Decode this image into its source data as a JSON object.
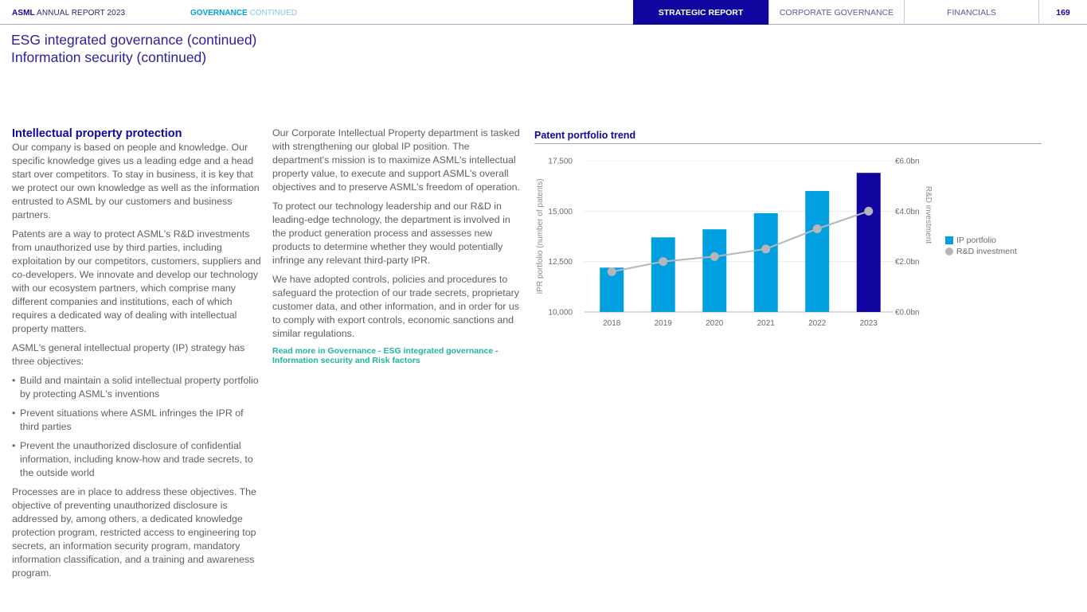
{
  "header": {
    "brand_bold": "ASML",
    "brand_rest": " ANNUAL REPORT 2023",
    "section_bold": "GOVERNANCE",
    "section_rest": " CONTINUED",
    "nav": [
      {
        "label": "STRATEGIC REPORT",
        "active": true
      },
      {
        "label": "CORPORATE GOVERNANCE",
        "active": false
      },
      {
        "label": "FINANCIALS",
        "active": false
      }
    ],
    "page_number": "169"
  },
  "title": {
    "line1": "ESG integrated governance (continued)",
    "line2": "Information security (continued)"
  },
  "column1": {
    "heading": "Intellectual property protection",
    "p1": "Our company is based on people and knowledge. Our specific knowledge gives us a leading edge and a head start over competitors. To stay in business, it is key that we protect our own knowledge as well as the information entrusted to ASML by our customers and business partners.",
    "p2": "Patents are a way to protect ASML's R&D investments from unauthorized use by third parties, including exploitation by our competitors, customers, suppliers and co-developers. We innovate and develop our technology with our ecosystem partners, which comprise many different companies and institutions, each of which requires a dedicated way of dealing with intellectual property matters.",
    "p3": "ASML's general intellectual property (IP) strategy has three objectives:",
    "bullets": [
      "Build and maintain a solid intellectual property portfolio by protecting ASML's inventions",
      "Prevent situations where ASML infringes the IPR of third parties",
      "Prevent the unauthorized disclosure of confidential information, including know-how and trade secrets, to the outside world"
    ],
    "p4": "Processes are in place to address these objectives. The objective of preventing unauthorized disclosure is addressed by, among others, a dedicated knowledge protection program, restricted access to engineering top secrets, an information security program, mandatory information classification, and a training and awareness program."
  },
  "column2": {
    "p1": "Our Corporate Intellectual Property department is tasked with strengthening our global IP position. The department's mission is to maximize ASML's intellectual property value, to execute and support ASML's overall objectives and to preserve ASML's freedom of operation.",
    "p2": "To protect our technology leadership and our R&D in leading-edge technology, the department is involved in the product generation process and assesses new products to determine whether they would potentially infringe any relevant third-party IPR.",
    "p3": "We have adopted controls, policies and procedures to safeguard the protection of our trade secrets, proprietary customer data, and other information, and in order for us to comply with export controls, economic sanctions and similar regulations.",
    "read_more": "Read more in Governance - ESG integrated governance - Information security and Risk factors"
  },
  "colors": {
    "brand": "#10069f",
    "bar": "#009fe0",
    "bar_highlight": "#10069f",
    "line": "#b6b6ba",
    "link": "#1fb5a3"
  },
  "chart_data": {
    "type": "bar",
    "title": "Patent portfolio trend",
    "categories": [
      "2018",
      "2019",
      "2020",
      "2021",
      "2022",
      "2023"
    ],
    "series": [
      {
        "name": "IP portfolio",
        "type": "bar",
        "axis": "left",
        "values": [
          12200,
          13700,
          14100,
          14900,
          16000,
          16900
        ]
      },
      {
        "name": "R&D investment",
        "type": "line",
        "axis": "right",
        "values": [
          1.6,
          2.0,
          2.2,
          2.5,
          3.3,
          4.0
        ]
      }
    ],
    "highlight_category": "2023",
    "ylabel": "IPR portfolio (number of patents)",
    "y2label": "R&D investment",
    "ylim": [
      10000,
      17500
    ],
    "yticks": [
      10000,
      12500,
      15000,
      17500
    ],
    "ytick_labels": [
      "10,000",
      "12,500",
      "15,000",
      "17,500"
    ],
    "y2lim": [
      0,
      6
    ],
    "y2ticks": [
      0,
      2,
      4,
      6
    ],
    "y2tick_labels": [
      "€0.0bn",
      "€2.0bn",
      "€4.0bn",
      "€6.0bn"
    ],
    "grid": true,
    "legend_position": "right",
    "legend": [
      "IP portfolio",
      "R&D investment"
    ]
  }
}
